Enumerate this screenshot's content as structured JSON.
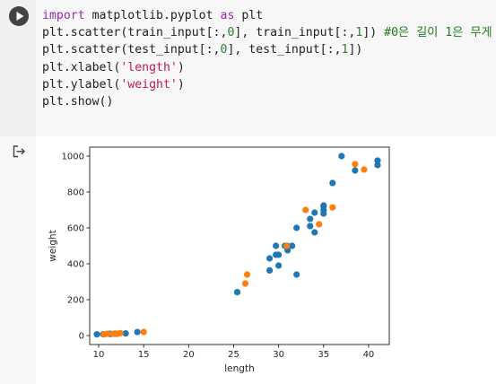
{
  "cell": {
    "run_icon": "play-icon",
    "code_lines": [
      [
        {
          "t": "import",
          "c": "kw"
        },
        {
          "t": " matplotlib.pyplot "
        },
        {
          "t": "as",
          "c": "kw"
        },
        {
          "t": " plt"
        }
      ],
      [
        {
          "t": "plt.scatter(train_input[:,"
        },
        {
          "t": "0",
          "c": "num"
        },
        {
          "t": "], train_input[:,"
        },
        {
          "t": "1",
          "c": "num"
        },
        {
          "t": "]) "
        },
        {
          "t": "#0은 길이 1은 무게",
          "c": "cmt"
        }
      ],
      [
        {
          "t": "plt.scatter(test_input[:,"
        },
        {
          "t": "0",
          "c": "num"
        },
        {
          "t": "], test_input[:,"
        },
        {
          "t": "1",
          "c": "num"
        },
        {
          "t": "])"
        }
      ],
      [
        {
          "t": "plt.xlabel("
        },
        {
          "t": "'length'",
          "c": "str"
        },
        {
          "t": ")"
        }
      ],
      [
        {
          "t": "plt.ylabel("
        },
        {
          "t": "'weight'",
          "c": "str"
        },
        {
          "t": ")"
        }
      ],
      [
        {
          "t": "plt.show()"
        }
      ]
    ]
  },
  "output": {
    "icon": "output-arrow-icon"
  },
  "chart_data": {
    "type": "scatter",
    "title": "",
    "xlabel": "length",
    "ylabel": "weight",
    "xlim": [
      9,
      42.3
    ],
    "ylim": [
      -50,
      1050
    ],
    "xticks": [
      10,
      15,
      20,
      25,
      30,
      35,
      40
    ],
    "yticks": [
      0,
      200,
      400,
      600,
      800,
      1000
    ],
    "grid": false,
    "series": [
      {
        "color": "#1f77b4",
        "points": [
          [
            25.4,
            242
          ],
          [
            29.7,
            450
          ],
          [
            29.0,
            363
          ],
          [
            29.0,
            430
          ],
          [
            30.0,
            390
          ],
          [
            30.7,
            500
          ],
          [
            31.0,
            475
          ],
          [
            31.0,
            500
          ],
          [
            31.5,
            500
          ],
          [
            32.0,
            340
          ],
          [
            32.0,
            600
          ],
          [
            33.5,
            610
          ],
          [
            33.5,
            650
          ],
          [
            34.0,
            575
          ],
          [
            34.0,
            685
          ],
          [
            35.0,
            680
          ],
          [
            35.0,
            700
          ],
          [
            35.0,
            725
          ],
          [
            35.0,
            720
          ],
          [
            36.0,
            850
          ],
          [
            37.0,
            1000
          ],
          [
            38.5,
            920
          ],
          [
            41.0,
            950
          ],
          [
            41.0,
            975
          ],
          [
            29.7,
            500
          ],
          [
            30.0,
            450
          ],
          [
            9.8,
            6.7
          ],
          [
            10.5,
            7.5
          ],
          [
            10.6,
            7.0
          ],
          [
            11.0,
            9.7
          ],
          [
            11.2,
            9.8
          ],
          [
            11.3,
            8.7
          ],
          [
            11.8,
            10.0
          ],
          [
            12.0,
            9.9
          ],
          [
            13.0,
            12.2
          ],
          [
            14.3,
            19.7
          ]
        ]
      },
      {
        "color": "#ff7f0e",
        "points": [
          [
            26.3,
            290
          ],
          [
            26.5,
            340
          ],
          [
            30.9,
            500
          ],
          [
            33.0,
            700
          ],
          [
            34.5,
            620
          ],
          [
            36.0,
            714
          ],
          [
            38.5,
            955
          ],
          [
            39.5,
            925
          ],
          [
            10.6,
            7.0
          ],
          [
            11.0,
            9.7
          ],
          [
            11.6,
            9.8
          ],
          [
            12.0,
            9.9
          ],
          [
            12.4,
            13.4
          ],
          [
            15.0,
            19.9
          ]
        ]
      }
    ]
  }
}
